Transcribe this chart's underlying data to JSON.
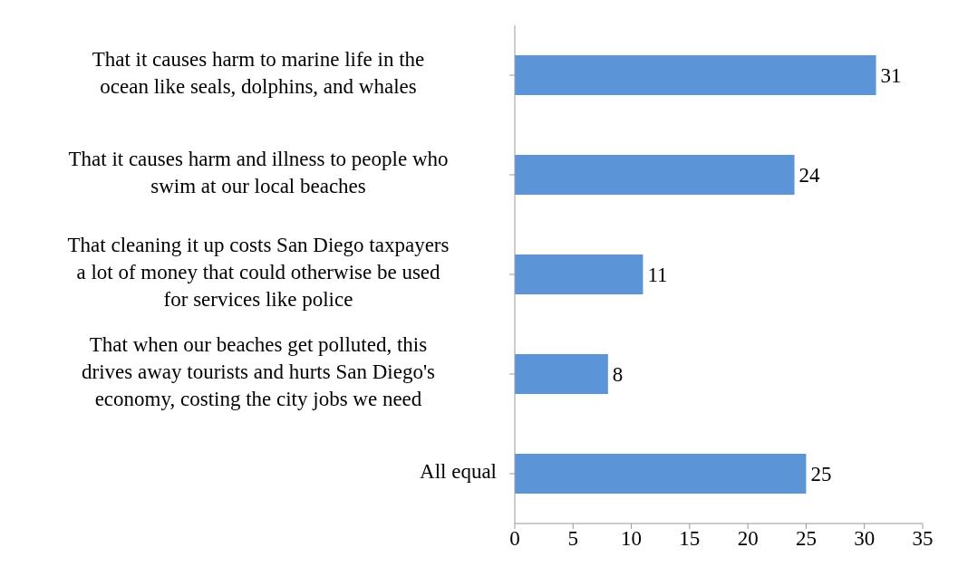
{
  "chart_data": {
    "type": "bar",
    "orientation": "horizontal",
    "categories": [
      "That it causes harm to marine life in the ocean like seals, dolphins, and whales",
      "That it causes harm and illness to people who swim at our local beaches",
      "That cleaning it up costs San Diego taxpayers a lot of money that could otherwise be used for services like police",
      "That when our beaches get polluted, this drives away tourists and hurts San Diego's economy, costing the city jobs we need",
      "All equal"
    ],
    "values": [
      31,
      24,
      11,
      8,
      25
    ],
    "color": "#5b95d8",
    "xlim": [
      0,
      35
    ],
    "xticks": [
      0,
      5,
      10,
      15,
      20,
      25,
      30,
      35
    ],
    "data_labels": true,
    "grid": false,
    "legend": false
  }
}
